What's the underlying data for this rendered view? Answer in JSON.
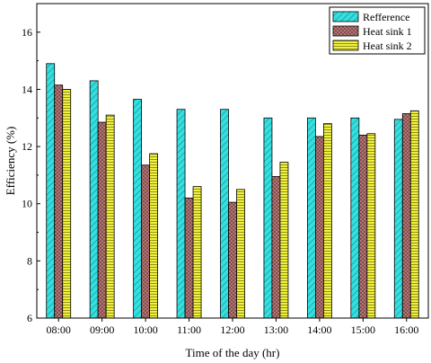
{
  "chart_data": {
    "type": "bar",
    "title": "",
    "xlabel": "Time of the day (hr)",
    "ylabel": "Efficiency (%)",
    "ylim": [
      6,
      17
    ],
    "yticks": [
      6,
      8,
      10,
      12,
      14,
      16
    ],
    "grid": false,
    "legend_position": "top-right",
    "categories": [
      "08:00",
      "09:00",
      "10:00",
      "11:00",
      "12:00",
      "13:00",
      "14:00",
      "15:00",
      "16:00"
    ],
    "series": [
      {
        "name": "Refference",
        "color": "#33e0e0",
        "pattern": "diagonal-hatch",
        "values": [
          14.9,
          14.3,
          13.65,
          13.3,
          13.3,
          13.0,
          13.0,
          13.0,
          12.95
        ]
      },
      {
        "name": "Heat sink 1",
        "color": "#c08080",
        "pattern": "cross-hatch",
        "values": [
          14.15,
          12.85,
          11.35,
          10.2,
          10.05,
          10.95,
          12.35,
          12.4,
          13.15
        ]
      },
      {
        "name": "Heat sink 2",
        "color": "#f0f040",
        "pattern": "horizontal-lines",
        "values": [
          14.0,
          13.1,
          11.75,
          10.6,
          10.5,
          11.45,
          12.8,
          12.45,
          13.25
        ]
      }
    ]
  }
}
